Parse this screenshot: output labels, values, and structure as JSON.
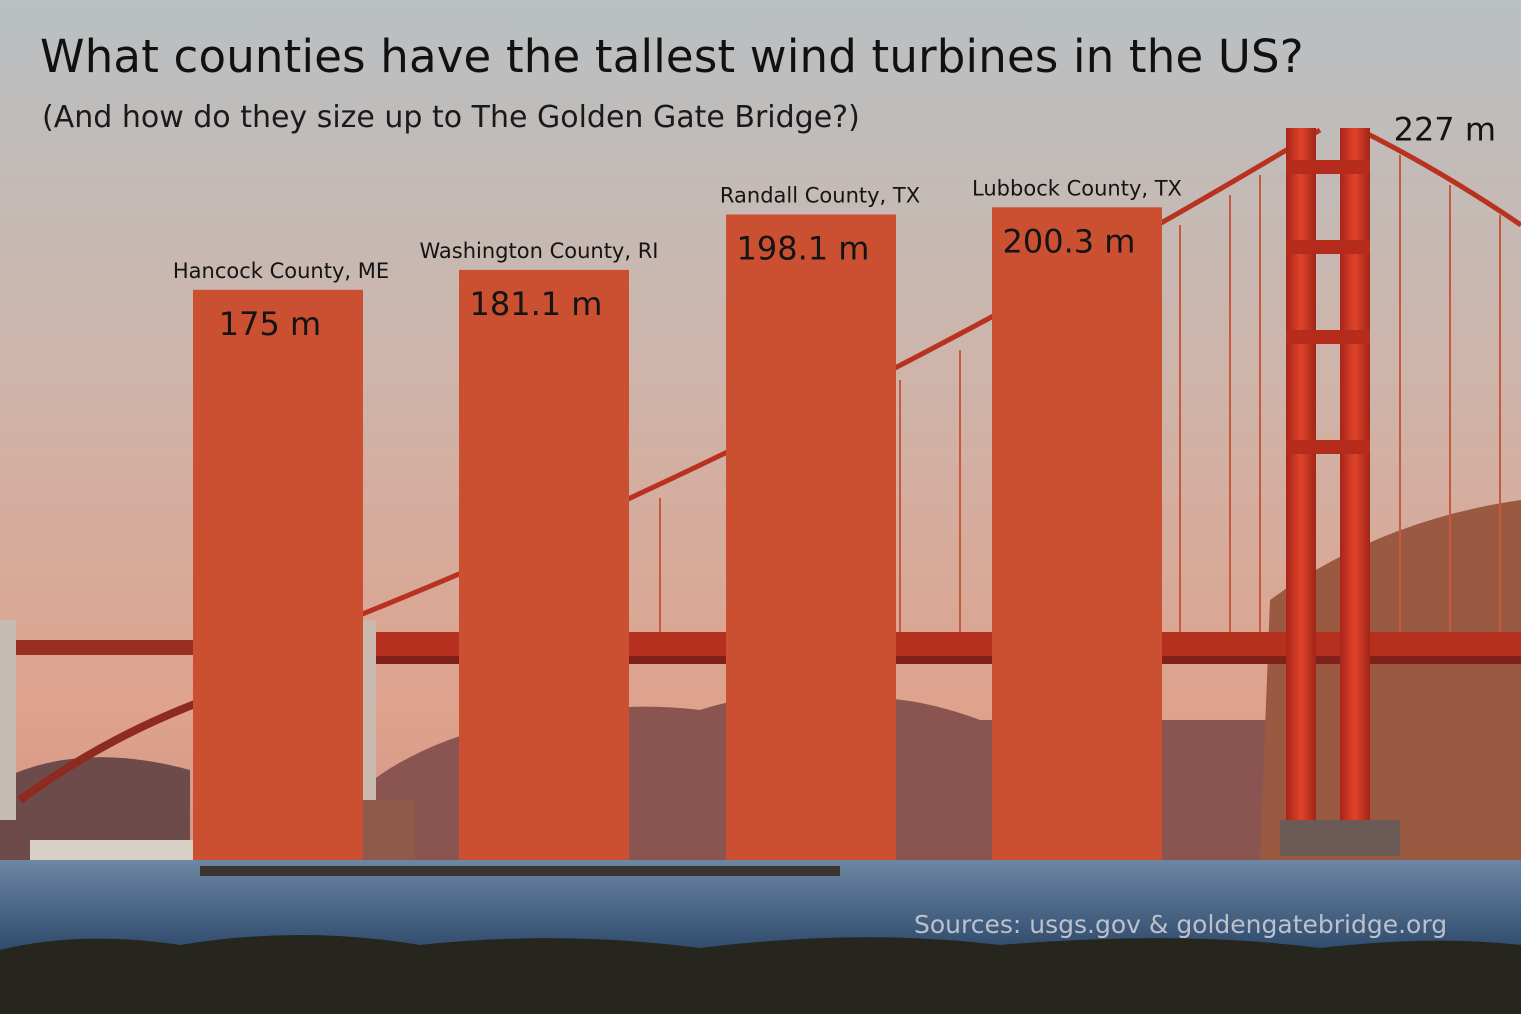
{
  "title": "What counties have the tallest wind turbines in the US?",
  "subtitle": "(And how do they size up to The Golden Gate Bridge?)",
  "source": "Sources: usgs.gov & goldengatebridge.org",
  "colors": {
    "bar": "#cb5032",
    "bridge": "#c8341e",
    "sky_top": "#b9c0c4",
    "sky_bottom": "#e3a890",
    "water": "#4a6f94"
  },
  "chart_data": {
    "type": "bar",
    "unit": "m",
    "categories": [
      "Hancock County, ME",
      "Washington County, RI",
      "Randall County, TX",
      "Lubbock County, TX"
    ],
    "values": [
      175,
      181.1,
      198.1,
      200.3
    ],
    "value_labels": [
      "175 m",
      "181.1 m",
      "198.1 m",
      "200.3 m"
    ],
    "reference": {
      "value": 227,
      "label": "227 m"
    },
    "ylim": [
      0,
      227
    ],
    "grid": false
  }
}
